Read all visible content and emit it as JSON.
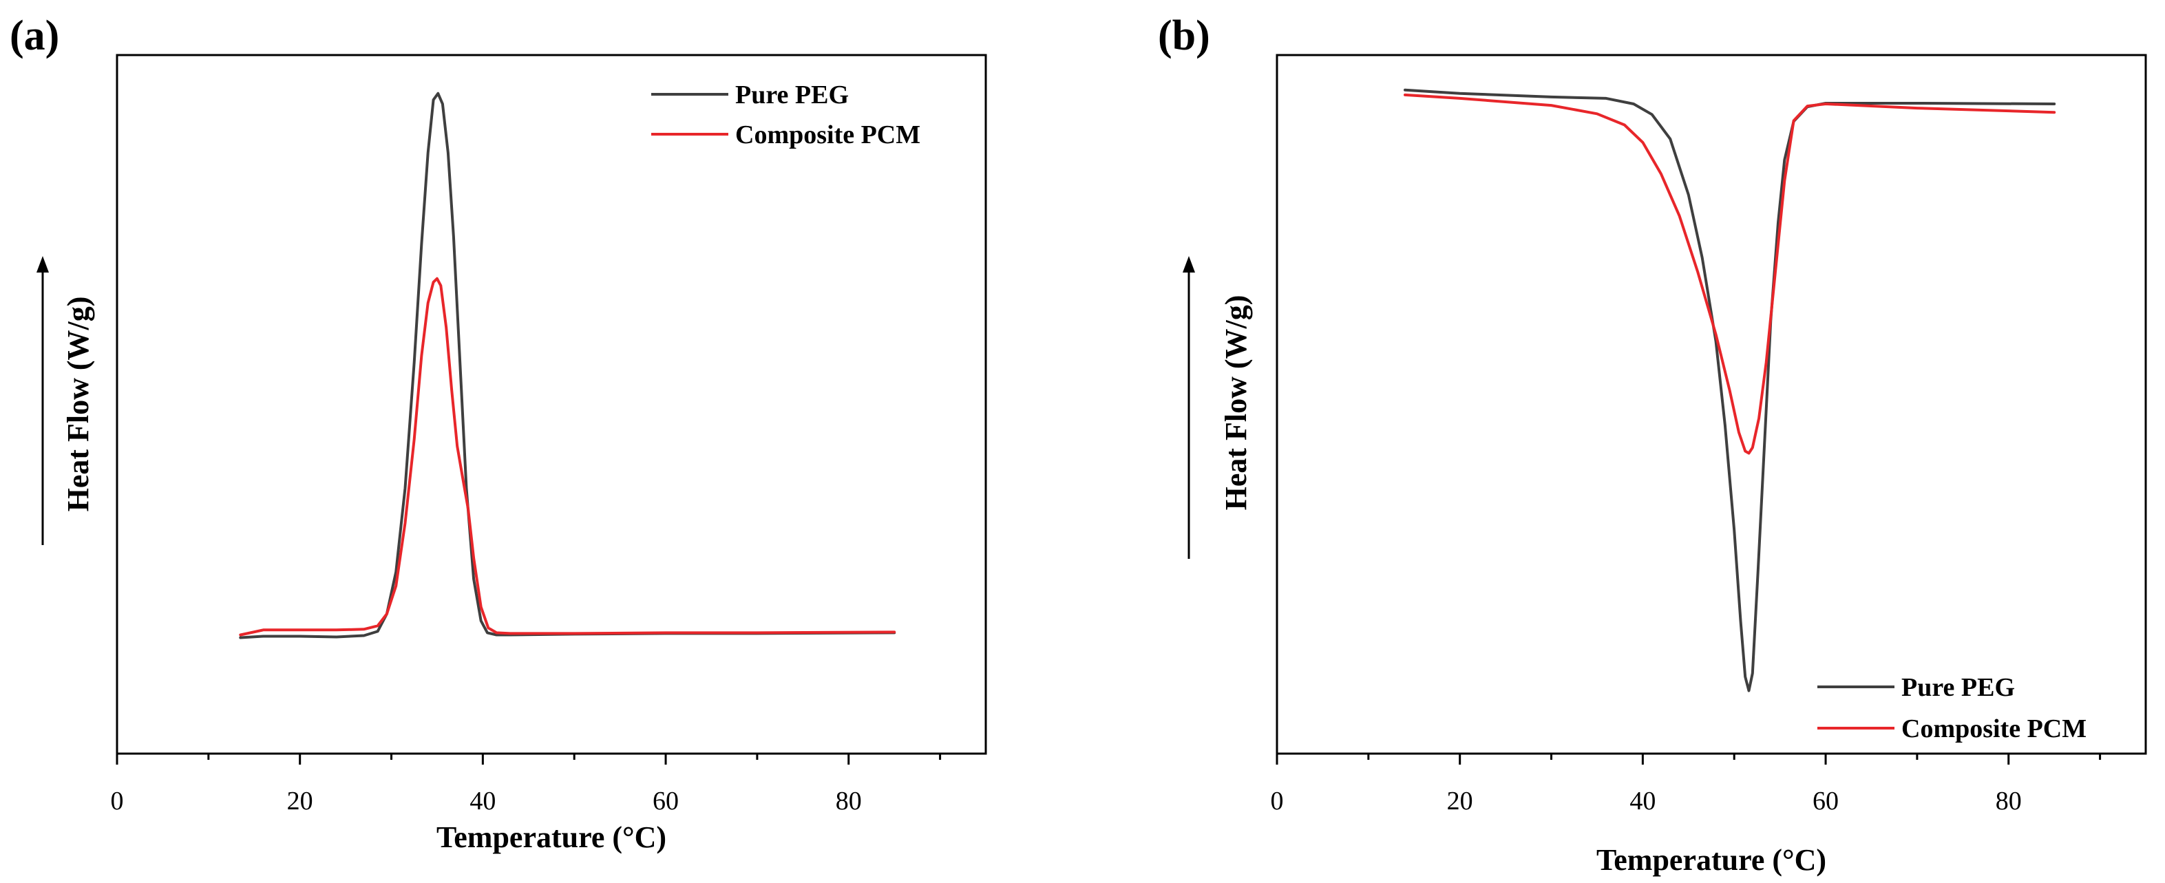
{
  "figure": {
    "background": "#ffffff"
  },
  "chart_data": [
    {
      "type": "line",
      "panel_label": "(a)",
      "title": "",
      "xlabel": "Temperature (°C)",
      "ylabel": "Heat Flow (W/g)",
      "xlim": [
        0,
        95
      ],
      "ylim": [
        0,
        100
      ],
      "y_ticks_shown": false,
      "x_ticks": [
        0,
        20,
        40,
        60,
        80
      ],
      "x_tick_labels": [
        "0",
        "20",
        "40",
        "60",
        "80"
      ],
      "grid": false,
      "legend_position": "top-right",
      "series": [
        {
          "name": "Pure PEG",
          "color": "#3f3f3f",
          "x": [
            13.5,
            16,
            20,
            24,
            27,
            28.5,
            29.5,
            30.5,
            31.5,
            32.5,
            33.3,
            34,
            34.6,
            35.1,
            35.6,
            36.2,
            36.8,
            37.5,
            38.2,
            39,
            39.8,
            40.5,
            41.5,
            43,
            50,
            60,
            70,
            85
          ],
          "y": [
            16.6,
            16.8,
            16.8,
            16.7,
            16.9,
            17.5,
            20,
            26,
            38,
            56,
            73,
            86,
            93.6,
            94.5,
            93,
            86,
            74,
            56,
            38,
            25,
            19,
            17.3,
            17,
            17,
            17.1,
            17.2,
            17.2,
            17.3
          ]
        },
        {
          "name": "Composite PCM",
          "color": "#e8262a",
          "x": [
            13.5,
            16,
            20,
            24,
            27,
            28.5,
            29.5,
            30.5,
            31.5,
            32.5,
            33.3,
            34,
            34.6,
            35,
            35.4,
            36,
            36.6,
            37.2,
            37.8,
            38.4,
            39,
            39.8,
            40.6,
            41.5,
            43,
            50,
            60,
            70,
            85
          ],
          "y": [
            17,
            17.7,
            17.7,
            17.7,
            17.8,
            18.3,
            20,
            24,
            33,
            45,
            57,
            64.5,
            67.5,
            68,
            67,
            61,
            52,
            44,
            39.5,
            35,
            28,
            21,
            18,
            17.3,
            17.2,
            17.2,
            17.3,
            17.3,
            17.4
          ]
        }
      ]
    },
    {
      "type": "line",
      "panel_label": "(b)",
      "title": "",
      "xlabel": "Temperature (°C)",
      "ylabel": "Heat Flow (W/g)",
      "xlim": [
        0,
        95
      ],
      "ylim": [
        0,
        100
      ],
      "y_ticks_shown": false,
      "x_ticks": [
        0,
        20,
        40,
        60,
        80
      ],
      "x_tick_labels": [
        "0",
        "20",
        "40",
        "60",
        "80"
      ],
      "grid": false,
      "legend_position": "bottom-right",
      "series": [
        {
          "name": "Pure PEG",
          "color": "#3f3f3f",
          "x": [
            14,
            20,
            30,
            36,
            39,
            41,
            43,
            45,
            46.5,
            48,
            49,
            50,
            50.7,
            51.2,
            51.6,
            52,
            52.6,
            53.3,
            54,
            54.8,
            55.5,
            56.5,
            58,
            60,
            70,
            85
          ],
          "y": [
            95,
            94.5,
            94,
            93.8,
            93,
            91.5,
            88,
            80,
            71,
            59,
            47,
            32,
            19,
            11,
            9,
            11.5,
            26,
            44,
            62,
            76,
            85,
            90.5,
            92.6,
            93.1,
            93.1,
            93
          ]
        },
        {
          "name": "Composite PCM",
          "color": "#e8262a",
          "x": [
            14,
            20,
            30,
            35,
            38,
            40,
            42,
            44,
            46,
            48,
            49.5,
            50.5,
            51.2,
            51.6,
            52,
            52.7,
            53.5,
            54.5,
            55.5,
            56.5,
            58,
            60,
            70,
            85
          ],
          "y": [
            94.3,
            93.8,
            92.8,
            91.6,
            90,
            87.5,
            83,
            77,
            69,
            60,
            52,
            46,
            43.3,
            43,
            43.8,
            48,
            56,
            69,
            82,
            90.6,
            92.7,
            93,
            92.4,
            91.8
          ]
        }
      ]
    }
  ]
}
